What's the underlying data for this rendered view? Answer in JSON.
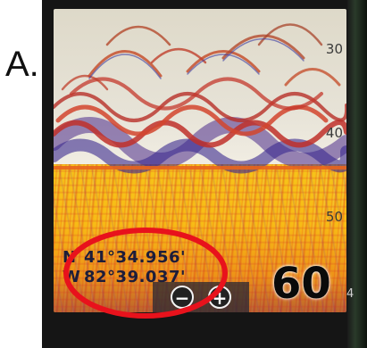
{
  "panel_label": "A.",
  "depth_scale": [
    "30",
    "40",
    "50"
  ],
  "gps": {
    "lat_dir": "N",
    "lat_value": "41°34.956'",
    "lon_dir": "W",
    "lon_value": "82°39.037'"
  },
  "zoom": {
    "out_label": "−",
    "in_label": "+"
  },
  "depth_readout": "60",
  "side_digit": "4",
  "colors": {
    "highlight_ellipse": "#e8121c",
    "sonar_returns": "#c0302a",
    "bottom_return": "#f6c419"
  }
}
